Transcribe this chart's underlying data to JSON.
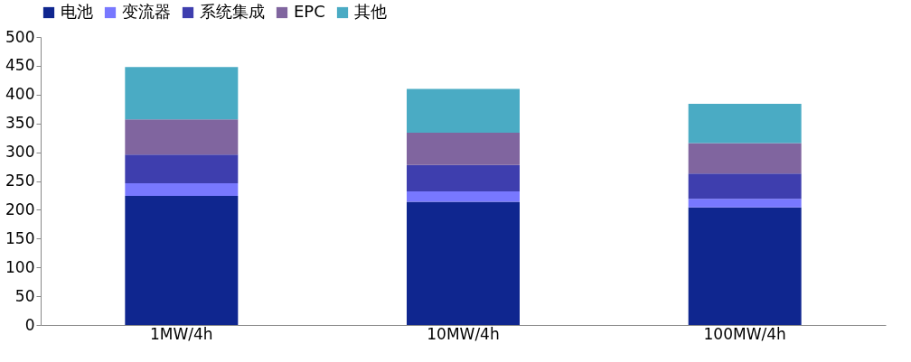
{
  "chart_data": {
    "type": "bar",
    "stacked": true,
    "categories": [
      "1MW/4h",
      "10MW/4h",
      "100MW/4h"
    ],
    "series": [
      {
        "name": "电池",
        "color": "#0f268f",
        "values": [
          224,
          214,
          204
        ]
      },
      {
        "name": "变流器",
        "color": "#7878ff",
        "values": [
          22,
          18,
          15
        ]
      },
      {
        "name": "系统集成",
        "color": "#3e3eae",
        "values": [
          50,
          46,
          44
        ]
      },
      {
        "name": "EPC",
        "color": "#80659f",
        "values": [
          61,
          56,
          53
        ]
      },
      {
        "name": "其他",
        "color": "#4aabc4",
        "values": [
          91,
          76,
          68
        ]
      }
    ],
    "ylim": [
      0,
      500
    ],
    "yticks": [
      0,
      50,
      100,
      150,
      200,
      250,
      300,
      350,
      400,
      450,
      500
    ],
    "grid": false,
    "legend": "top"
  }
}
